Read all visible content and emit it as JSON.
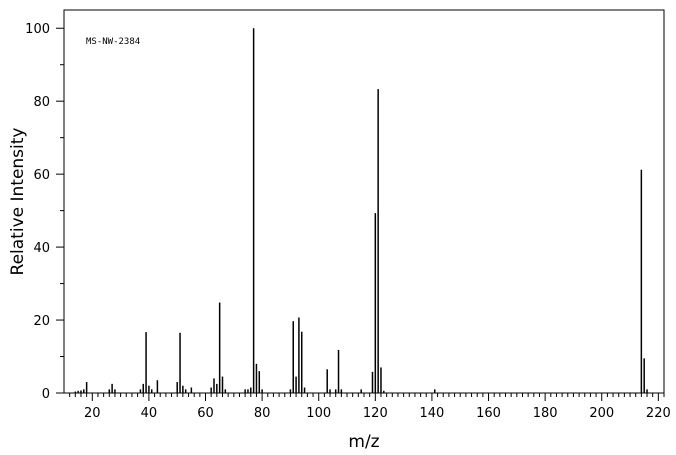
{
  "chart_data": {
    "type": "bar",
    "annotation": "MS-NW-2384",
    "xlabel": "m/z",
    "ylabel": "Relative Intensity",
    "xlim": [
      10,
      222
    ],
    "ylim": [
      0,
      105
    ],
    "xticks_major": [
      20,
      40,
      60,
      80,
      100,
      120,
      140,
      160,
      180,
      200,
      220
    ],
    "yticks_major": [
      0,
      20,
      40,
      60,
      80,
      100
    ],
    "grid": false,
    "legend": "none",
    "bar_color": "#000000",
    "peaks": [
      {
        "mz": 14,
        "intensity": 0.4
      },
      {
        "mz": 15,
        "intensity": 0.6
      },
      {
        "mz": 16,
        "intensity": 0.7
      },
      {
        "mz": 17,
        "intensity": 1.0
      },
      {
        "mz": 18,
        "intensity": 3.0
      },
      {
        "mz": 26,
        "intensity": 1.0
      },
      {
        "mz": 27,
        "intensity": 2.5
      },
      {
        "mz": 28,
        "intensity": 1.0
      },
      {
        "mz": 37,
        "intensity": 1.0
      },
      {
        "mz": 38,
        "intensity": 2.5
      },
      {
        "mz": 39,
        "intensity": 16.7
      },
      {
        "mz": 40,
        "intensity": 2.0
      },
      {
        "mz": 41,
        "intensity": 1.0
      },
      {
        "mz": 43,
        "intensity": 3.5
      },
      {
        "mz": 50,
        "intensity": 3.0
      },
      {
        "mz": 51,
        "intensity": 16.5
      },
      {
        "mz": 52,
        "intensity": 2.0
      },
      {
        "mz": 53,
        "intensity": 1.0
      },
      {
        "mz": 55,
        "intensity": 1.5
      },
      {
        "mz": 62,
        "intensity": 1.5
      },
      {
        "mz": 63,
        "intensity": 4.0
      },
      {
        "mz": 64,
        "intensity": 2.5
      },
      {
        "mz": 65,
        "intensity": 24.8
      },
      {
        "mz": 66,
        "intensity": 4.5
      },
      {
        "mz": 67,
        "intensity": 1.0
      },
      {
        "mz": 74,
        "intensity": 1.0
      },
      {
        "mz": 75,
        "intensity": 1.0
      },
      {
        "mz": 76,
        "intensity": 1.5
      },
      {
        "mz": 77,
        "intensity": 100
      },
      {
        "mz": 78,
        "intensity": 8.0
      },
      {
        "mz": 79,
        "intensity": 6.0
      },
      {
        "mz": 80,
        "intensity": 1.0
      },
      {
        "mz": 90,
        "intensity": 1.0
      },
      {
        "mz": 91,
        "intensity": 19.7
      },
      {
        "mz": 92,
        "intensity": 4.5
      },
      {
        "mz": 93,
        "intensity": 20.7
      },
      {
        "mz": 94,
        "intensity": 16.8
      },
      {
        "mz": 95,
        "intensity": 1.5
      },
      {
        "mz": 103,
        "intensity": 6.5
      },
      {
        "mz": 104,
        "intensity": 1.0
      },
      {
        "mz": 106,
        "intensity": 1.0
      },
      {
        "mz": 107,
        "intensity": 11.8
      },
      {
        "mz": 108,
        "intensity": 1.0
      },
      {
        "mz": 115,
        "intensity": 1.0
      },
      {
        "mz": 119,
        "intensity": 5.8
      },
      {
        "mz": 120,
        "intensity": 49.3
      },
      {
        "mz": 121,
        "intensity": 83.3
      },
      {
        "mz": 122,
        "intensity": 7.0
      },
      {
        "mz": 123,
        "intensity": 0.6
      },
      {
        "mz": 141,
        "intensity": 1.0
      },
      {
        "mz": 214,
        "intensity": 61.2
      },
      {
        "mz": 215,
        "intensity": 9.5
      },
      {
        "mz": 216,
        "intensity": 1.0
      }
    ]
  }
}
